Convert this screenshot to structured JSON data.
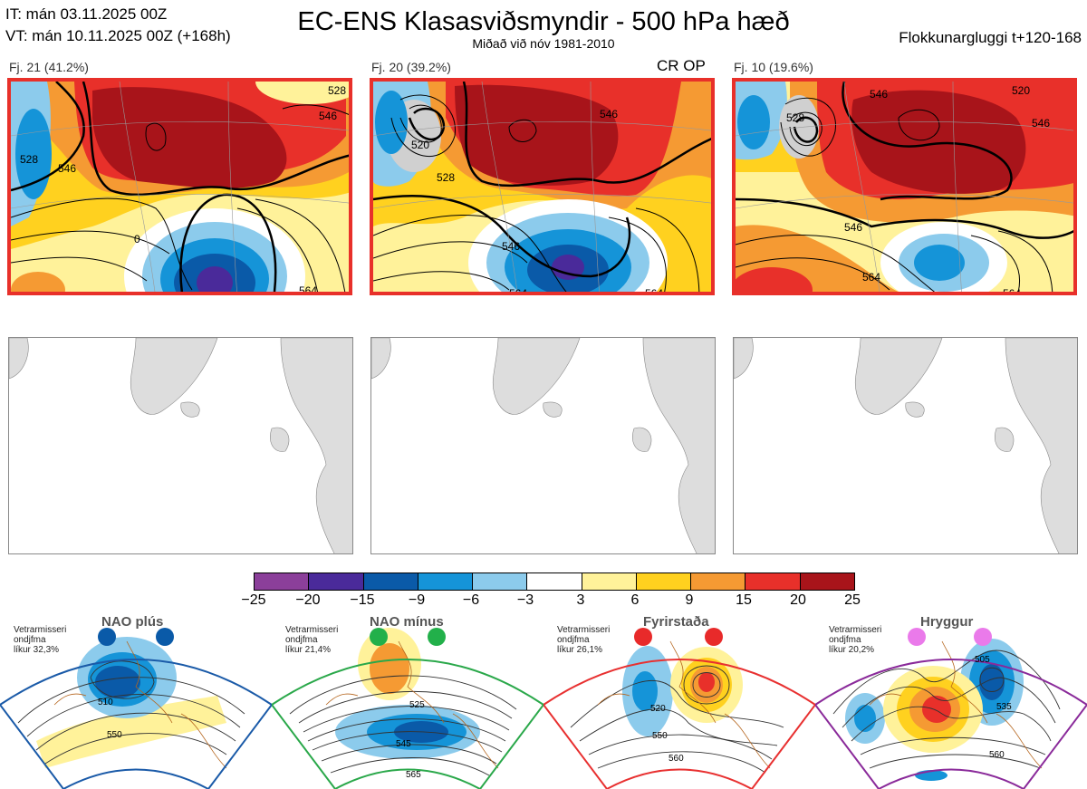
{
  "header": {
    "it_line": "IT: mán 03.11.2025 00Z",
    "vt_line": "VT: mán 10.11.2025 00Z  (+168h)",
    "title": "EC-ENS Klasasviðsmyndir - 500 hPa hæð",
    "subtitle": "Miðað við nóv 1981-2010",
    "window": "Flokkunargluggi t+120-168"
  },
  "clusters": [
    {
      "label": "Fj. 21 (41.2%)",
      "tag": "",
      "contours": [
        "546",
        "528",
        "546",
        "0",
        "564",
        "528"
      ]
    },
    {
      "label": "Fj. 20 (39.2%)",
      "tag": "CR OP",
      "contours": [
        "546",
        "520",
        "528",
        "546",
        "564",
        "564"
      ]
    },
    {
      "label": "Fj. 10 (19.6%)",
      "tag": "",
      "contours": [
        "528",
        "546",
        "546",
        "564",
        "564",
        "520",
        "546"
      ]
    }
  ],
  "colorbar": {
    "ticks": [
      "−25",
      "−20",
      "−15",
      "−9",
      "−6",
      "−3",
      "3",
      "6",
      "9",
      "15",
      "20",
      "25"
    ],
    "colors": [
      "#8b3f9a",
      "#4a2a9a",
      "#0a5aa8",
      "#1594d8",
      "#8ccbec",
      "#ffffff",
      "#fff29a",
      "#ffd11f",
      "#f59a33",
      "#e8302a",
      "#a8141a"
    ]
  },
  "regimes": [
    {
      "name": "NAO plús",
      "note1": "Vetrarmisseri",
      "note2": "ondjfma",
      "note3": "líkur 32,3%",
      "frame": "#1a5aa8",
      "dot": "#0a5aa8",
      "labels": [
        "510",
        "550"
      ]
    },
    {
      "name": "NAO mínus",
      "note1": "Vetrarmisseri",
      "note2": "ondjfma",
      "note3": "líkur 21,4%",
      "frame": "#2aa84a",
      "dot": "#22b04a",
      "labels": [
        "525",
        "545",
        "565"
      ]
    },
    {
      "name": "Fyrirstaða",
      "note1": "Vetrarmisseri",
      "note2": "ondjfma",
      "note3": "líkur 26,1%",
      "frame": "#e83030",
      "dot": "#e82a2a",
      "labels": [
        "520",
        "550",
        "560"
      ]
    },
    {
      "name": "Hryggur",
      "note1": "Vetrarmisseri",
      "note2": "ondjfma",
      "note3": "líkur 20,2%",
      "frame": "#8a2a9a",
      "dot": "#ea7aea",
      "labels": [
        "505",
        "535",
        "560"
      ]
    }
  ]
}
